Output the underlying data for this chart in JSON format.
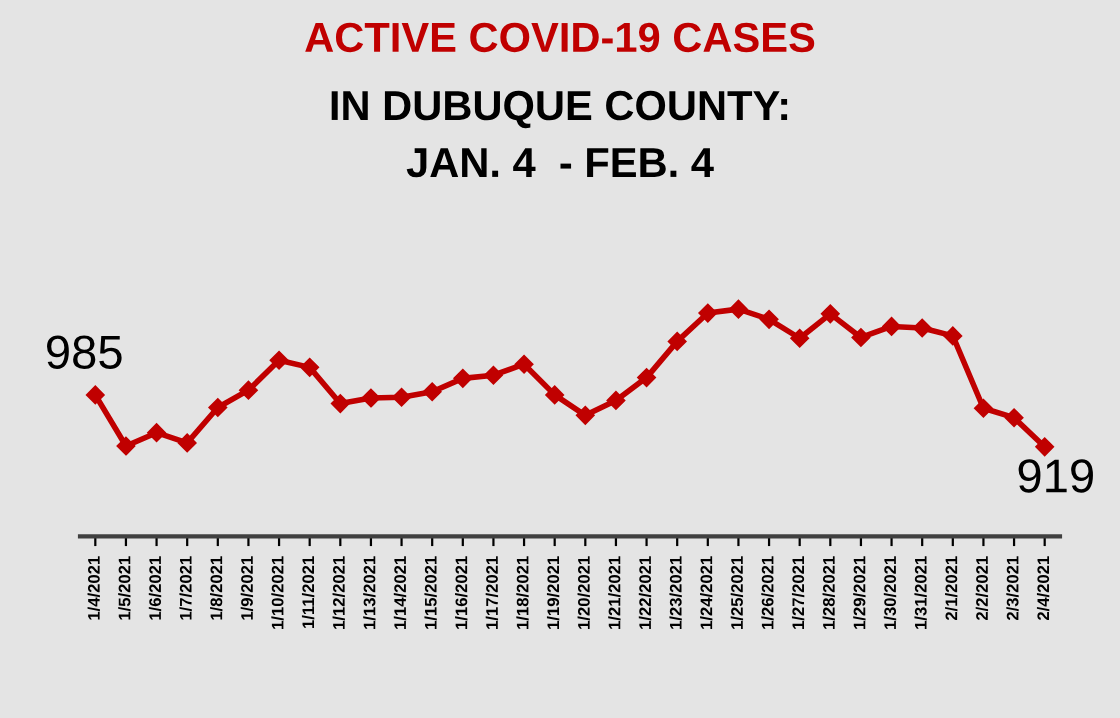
{
  "chart_data": {
    "type": "line",
    "title": "ACTIVE COVID-19 CASES",
    "subtitle": "IN DUBUQUE COUNTY:\nJAN. 4  - FEB. 4",
    "categories": [
      "1/4/2021",
      "1/5/2021",
      "1/6/2021",
      "1/7/2021",
      "1/8/2021",
      "1/9/2021",
      "1/10/2021",
      "1/11/2021",
      "1/12/2021",
      "1/13/2021",
      "1/14/2021",
      "1/15/2021",
      "1/16/2021",
      "1/17/2021",
      "1/18/2021",
      "1/19/2021",
      "1/20/2021",
      "1/21/2021",
      "1/22/2021",
      "1/23/2021",
      "1/24/2021",
      "1/25/2021",
      "1/26/2021",
      "1/27/2021",
      "1/28/2021",
      "1/29/2021",
      "1/30/2021",
      "1/31/2021",
      "2/1/2021",
      "2/2/2021",
      "2/3/2021",
      "2/4/2021"
    ],
    "series": [
      {
        "color": "#c00000",
        "values": [
          985,
          920,
          937,
          924,
          969,
          991,
          1029,
          1020,
          974,
          981,
          982,
          989,
          1006,
          1010,
          1024,
          985,
          959,
          978,
          1007,
          1053,
          1089,
          1094,
          1081,
          1057,
          1088,
          1058,
          1072,
          1070,
          1060,
          968,
          956,
          919
        ],
        "value_labels": [
          "985",
          null,
          null,
          null,
          null,
          null,
          null,
          null,
          null,
          null,
          null,
          null,
          null,
          null,
          null,
          null,
          null,
          null,
          null,
          null,
          null,
          null,
          null,
          null,
          null,
          null,
          null,
          null,
          null,
          null,
          null,
          "919"
        ]
      }
    ],
    "tick_labels": "x",
    "grid": false,
    "marker": "diamond",
    "line_style": "solid"
  }
}
